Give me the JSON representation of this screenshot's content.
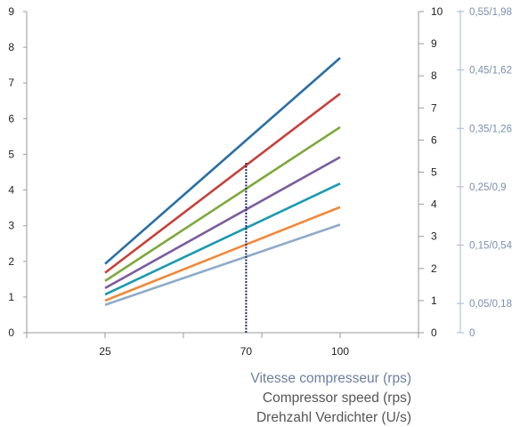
{
  "chart_data": {
    "type": "line",
    "x": [
      25,
      100
    ],
    "x_ticks": [
      25,
      70,
      100
    ],
    "x_tick_labels": [
      "25",
      "70",
      "100"
    ],
    "x_range": [
      0,
      125
    ],
    "xlabel_lines": [
      "Vitesse compresseur (rps)",
      "Compressor speed (rps)",
      "Drehzahl Verdichter (U/s)"
    ],
    "y_left": {
      "ylim": [
        0,
        9
      ],
      "ticks": [
        "0",
        "1",
        "2",
        "3",
        "4",
        "5",
        "6",
        "7",
        "8",
        "9"
      ]
    },
    "y_right": {
      "ylim": [
        0,
        10
      ],
      "ticks": [
        "0",
        "1",
        "2",
        "3",
        "4",
        "5",
        "6",
        "7",
        "8",
        "9",
        "10"
      ]
    },
    "y_right_outer": {
      "range": [
        0,
        0.55
      ],
      "ticks": [
        {
          "v": 0,
          "label": "0"
        },
        {
          "v": 0.05,
          "label": "0,05/0,18"
        },
        {
          "v": 0.15,
          "label": "0,15/0,54"
        },
        {
          "v": 0.25,
          "label": "0,25/0,9"
        },
        {
          "v": 0.35,
          "label": "0,35/1,26"
        },
        {
          "v": 0.45,
          "label": "0,45/1,62"
        },
        {
          "v": 0.55,
          "label": "0,55/1,98"
        }
      ]
    },
    "series": [
      {
        "values": [
          1.93,
          7.7
        ],
        "color": "#2a6fa5"
      },
      {
        "values": [
          1.68,
          6.7
        ],
        "color": "#c7403a"
      },
      {
        "values": [
          1.45,
          5.76
        ],
        "color": "#7ca93b"
      },
      {
        "values": [
          1.25,
          4.92
        ],
        "color": "#7b5c9f"
      },
      {
        "values": [
          1.07,
          4.18
        ],
        "color": "#1a9ab0"
      },
      {
        "values": [
          0.9,
          3.52
        ],
        "color": "#f0883a"
      },
      {
        "values": [
          0.78,
          3.03
        ],
        "color": "#8eaac9"
      }
    ],
    "reference_line": {
      "x": 70,
      "y": [
        0,
        4.8
      ],
      "color": "#1f2a6b",
      "style": "dashed"
    },
    "grid": false
  }
}
